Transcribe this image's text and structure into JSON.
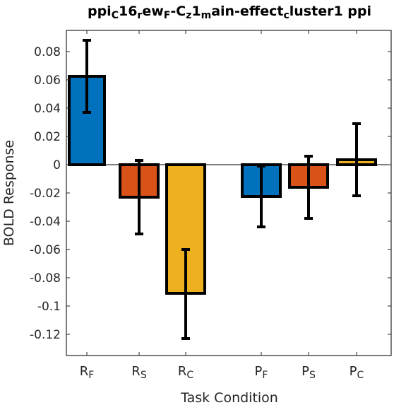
{
  "chart_data": {
    "type": "bar",
    "title": "ppi_C16_rew_F-C_z1_main-effect_cluster1 ppi",
    "title_parts": [
      {
        "text": "ppi",
        "sub": false
      },
      {
        "text": "C",
        "sub": true
      },
      {
        "text": "16",
        "sub": false
      },
      {
        "text": "r",
        "sub": true
      },
      {
        "text": "ew",
        "sub": false
      },
      {
        "text": "F",
        "sub": true
      },
      {
        "text": "-C",
        "sub": false
      },
      {
        "text": "z",
        "sub": true
      },
      {
        "text": "1",
        "sub": false
      },
      {
        "text": "m",
        "sub": true
      },
      {
        "text": "ain-effect",
        "sub": false
      },
      {
        "text": "c",
        "sub": true
      },
      {
        "text": "luster1 ppi",
        "sub": false
      }
    ],
    "xlabel": "Task Condition",
    "ylabel": "BOLD Response",
    "ylim": [
      -0.135,
      0.095
    ],
    "yticks": [
      0.08,
      0.06,
      0.04,
      0.02,
      0,
      -0.02,
      -0.04,
      -0.06,
      -0.08,
      -0.1,
      -0.12
    ],
    "ytick_labels": [
      "0.08",
      "0.06",
      "0.04",
      "0.02",
      "0",
      "-0.02",
      "-0.04",
      "-0.06",
      "-0.08",
      "-0.1",
      "-0.12"
    ],
    "categories": [
      {
        "main": "R",
        "sub": "F"
      },
      {
        "main": "R",
        "sub": "S"
      },
      {
        "main": "R",
        "sub": "C"
      },
      {
        "main": "P",
        "sub": "F"
      },
      {
        "main": "P",
        "sub": "S"
      },
      {
        "main": "P",
        "sub": "C"
      }
    ],
    "values": [
      0.0625,
      -0.023,
      -0.091,
      -0.0225,
      -0.016,
      0.0035
    ],
    "error_low": [
      0.037,
      -0.049,
      -0.123,
      -0.044,
      -0.038,
      -0.022
    ],
    "error_high": [
      0.088,
      0.003,
      -0.06,
      -0.001,
      0.006,
      0.029
    ],
    "bar_colors": [
      "#0072BD",
      "#D95319",
      "#EDB120",
      "#0072BD",
      "#D95319",
      "#EDB120"
    ],
    "grid": false,
    "legend": "none"
  }
}
